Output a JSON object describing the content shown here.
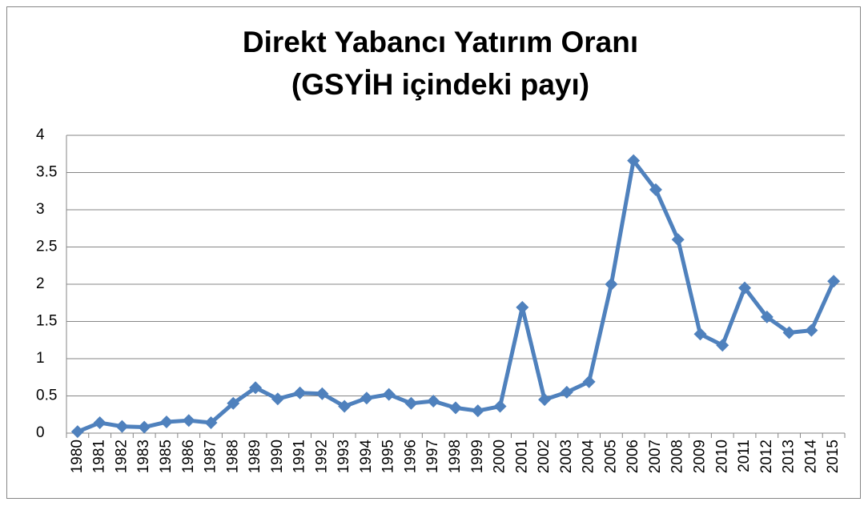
{
  "chart_data": {
    "type": "line",
    "title": [
      "Direkt Yabancı Yatırım Oranı",
      "(GSYİH içindeki payı)"
    ],
    "categories": [
      "1980",
      "1981",
      "1982",
      "1983",
      "1985",
      "1986",
      "1987",
      "1988",
      "1989",
      "1990",
      "1991",
      "1992",
      "1993",
      "1994",
      "1995",
      "1996",
      "1997",
      "1998",
      "1999",
      "2000",
      "2001",
      "2002",
      "2003",
      "2004",
      "2005",
      "2006",
      "2007",
      "2008",
      "2009",
      "2010",
      "2011",
      "2012",
      "2013",
      "2014",
      "2015"
    ],
    "series": [
      {
        "color": "#4f81bd",
        "values": [
          0.02,
          0.14,
          0.09,
          0.08,
          0.15,
          0.17,
          0.14,
          0.4,
          0.61,
          0.46,
          0.54,
          0.53,
          0.36,
          0.47,
          0.52,
          0.4,
          0.43,
          0.34,
          0.3,
          0.36,
          1.69,
          0.45,
          0.55,
          0.69,
          2.0,
          3.66,
          3.27,
          2.6,
          1.33,
          1.18,
          1.95,
          1.56,
          1.35,
          1.38,
          2.04
        ]
      }
    ],
    "ylim": [
      0,
      4
    ],
    "yticks": [
      0,
      0.5,
      1,
      1.5,
      2,
      2.5,
      3,
      3.5,
      4
    ],
    "grid": true
  }
}
